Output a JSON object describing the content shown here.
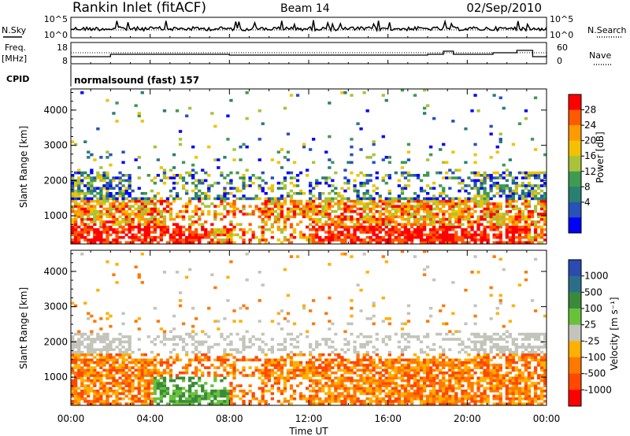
{
  "header": {
    "station": "Rankin Inlet (fitACF)",
    "beam": "Beam 14",
    "date": "02/Sep/2010"
  },
  "strips": {
    "nsky_label": "N.Sky",
    "nsearch_label": "N.Search",
    "counts_ticks": [
      "10^5",
      "10^0"
    ],
    "freq_label_line1": "Freq.",
    "freq_label_line2": "[MHz]",
    "freq_ticks": [
      "18",
      "8"
    ],
    "nave_label": "Nave",
    "nave_ticks": [
      "60",
      "0"
    ],
    "cpid_label": "CPID",
    "cpid_text": "normalsound (fast) 157"
  },
  "colorbars": {
    "power": {
      "label": "Power [dB]",
      "ticks": [
        "28",
        "24",
        "20",
        "16",
        "12",
        "8",
        "4"
      ],
      "colors": [
        "#ff0000",
        "#ff5a00",
        "#ff9a00",
        "#f2c200",
        "#a8c23a",
        "#3f9a52",
        "#2a8070",
        "#2752b8",
        "#0000ff"
      ]
    },
    "velocity": {
      "label": "Velocity [m s⁻¹]",
      "ticks": [
        "1000",
        "500",
        "100",
        "25",
        "-25",
        "-100",
        "-500",
        "-1000"
      ],
      "colors": [
        "#2b4bb0",
        "#2b6e8a",
        "#3b8a3b",
        "#67c23a",
        "#c4c4bc",
        "#ffb000",
        "#ff7800",
        "#ff4800",
        "#ff0000"
      ]
    }
  },
  "chart_data": [
    {
      "type": "heatmap",
      "title": "",
      "xlabel": "Time UT",
      "ylabel": "Slant Range [km]",
      "x_ticks": [
        "00:00",
        "04:00",
        "08:00",
        "12:00",
        "16:00",
        "20:00",
        "00:00"
      ],
      "y_ticks": [
        "1000",
        "2000",
        "3000",
        "4000"
      ],
      "xlim_hours": [
        0,
        24
      ],
      "ylim_km": [
        200,
        4600
      ],
      "colorbar_label": "Power [dB]",
      "colorbar_ticks": [
        28,
        24,
        20,
        16,
        12,
        8,
        4
      ],
      "grid": false
    },
    {
      "type": "heatmap",
      "title": "",
      "xlabel": "Time UT",
      "ylabel": "Slant Range [km]",
      "x_ticks": [
        "00:00",
        "04:00",
        "08:00",
        "12:00",
        "16:00",
        "20:00",
        "00:00"
      ],
      "y_ticks": [
        "1000",
        "2000",
        "3000",
        "4000"
      ],
      "xlim_hours": [
        0,
        24
      ],
      "ylim_km": [
        200,
        4600
      ],
      "colorbar_label": "Velocity [m s⁻¹]",
      "colorbar_ticks": [
        1000,
        500,
        100,
        25,
        -25,
        -100,
        -500,
        -1000
      ],
      "grid": false
    }
  ]
}
